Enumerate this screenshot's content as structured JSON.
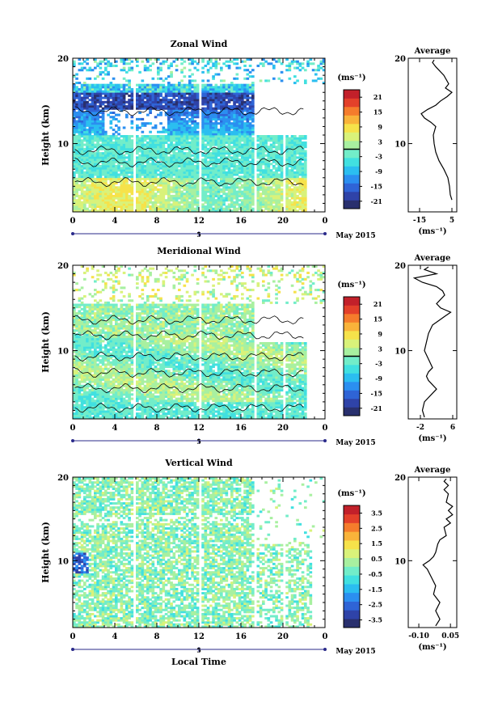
{
  "chart_data": [
    {
      "type": "heatmap",
      "title": "Zonal Wind",
      "ylabel": "Height (km)",
      "yticks": [
        "10",
        "20"
      ],
      "ylim": [
        2,
        20
      ],
      "xticks": [
        "0",
        "4",
        "8",
        "12",
        "16",
        "20",
        "0"
      ],
      "xlim": [
        0,
        24
      ],
      "date_marker": "5",
      "date_label": "May 2015",
      "colorbar": {
        "unit": "(ms⁻¹)",
        "ticks": [
          "21",
          "15",
          "9",
          "3",
          "-3",
          "-9",
          "-15",
          "-21"
        ],
        "range": [
          -24,
          24
        ],
        "zero_line": true
      },
      "average": {
        "title": "Average",
        "yticks": [
          "10",
          "20"
        ],
        "xticks": [
          "-15",
          "5"
        ],
        "xlim": [
          -22,
          8
        ],
        "xlabel": "(ms⁻¹)",
        "profile": [
          [
            3.4,
            5
          ],
          [
            4,
            4
          ],
          [
            5,
            3.5
          ],
          [
            6,
            2.5
          ],
          [
            7,
            0
          ],
          [
            8,
            -3
          ],
          [
            9,
            -5
          ],
          [
            10,
            -6
          ],
          [
            11,
            -6.5
          ],
          [
            12,
            -5
          ],
          [
            12.5,
            -8
          ],
          [
            13,
            -12
          ],
          [
            13.5,
            -14
          ],
          [
            14,
            -10
          ],
          [
            14.5,
            -5
          ],
          [
            15,
            -2
          ],
          [
            15.5,
            2
          ],
          [
            16,
            5
          ],
          [
            16.5,
            1
          ],
          [
            17,
            3
          ],
          [
            18,
            0
          ],
          [
            19,
            -5
          ],
          [
            19.5,
            -7
          ],
          [
            19.8,
            -6
          ]
        ]
      }
    },
    {
      "type": "heatmap",
      "title": "Meridional Wind",
      "ylabel": "Height (km)",
      "yticks": [
        "10",
        "20"
      ],
      "ylim": [
        2,
        20
      ],
      "xticks": [
        "0",
        "4",
        "8",
        "12",
        "16",
        "20",
        "0"
      ],
      "xlim": [
        0,
        24
      ],
      "date_marker": "5",
      "date_label": "May 2015",
      "colorbar": {
        "unit": "(ms⁻¹)",
        "ticks": [
          "21",
          "15",
          "9",
          "3",
          "-3",
          "-9",
          "-15",
          "-21"
        ],
        "range": [
          -24,
          24
        ],
        "zero_line": true
      },
      "average": {
        "title": "Average",
        "yticks": [
          "10",
          "20"
        ],
        "xticks": [
          "-2",
          "6"
        ],
        "xlim": [
          -5,
          7
        ],
        "xlabel": "(ms⁻¹)",
        "profile": [
          [
            2.2,
            -1
          ],
          [
            3,
            -1.5
          ],
          [
            4,
            -1
          ],
          [
            5,
            1
          ],
          [
            5.5,
            2
          ],
          [
            6,
            1
          ],
          [
            6.5,
            0
          ],
          [
            7,
            -0.5
          ],
          [
            7.5,
            0
          ],
          [
            8,
            1
          ],
          [
            9,
            0
          ],
          [
            10,
            -1
          ],
          [
            11,
            -0.5
          ],
          [
            12,
            0
          ],
          [
            13,
            1
          ],
          [
            13.5,
            2.5
          ],
          [
            14,
            4
          ],
          [
            14.5,
            5.5
          ],
          [
            15,
            3
          ],
          [
            15.5,
            2
          ],
          [
            16,
            3
          ],
          [
            16.5,
            4
          ],
          [
            17,
            3.5
          ],
          [
            17.5,
            2
          ],
          [
            18,
            -1.5
          ],
          [
            18.5,
            -3.5
          ],
          [
            19,
            2
          ],
          [
            19.5,
            -1
          ],
          [
            19.8,
            0
          ]
        ]
      }
    },
    {
      "type": "heatmap",
      "title": "Vertical Wind",
      "ylabel": "Height (km)",
      "xlabel": "Local Time",
      "yticks": [
        "10",
        "20"
      ],
      "ylim": [
        2,
        20
      ],
      "xticks": [
        "0",
        "4",
        "8",
        "12",
        "16",
        "20",
        "0"
      ],
      "xlim": [
        0,
        24
      ],
      "date_marker": "5",
      "date_label": "May 2015",
      "colorbar": {
        "unit": "(ms⁻¹)",
        "ticks": [
          "3.5",
          "2.5",
          "1.5",
          "0.5",
          "-0.5",
          "-1.5",
          "-2.5",
          "-3.5"
        ],
        "range": [
          -4,
          4
        ],
        "zero_line": false
      },
      "average": {
        "title": "Average",
        "yticks": [
          "10",
          "20"
        ],
        "xticks": [
          "-0.10",
          "0.05"
        ],
        "xlim": [
          -0.15,
          0.08
        ],
        "xlabel": "(ms⁻¹)",
        "profile": [
          [
            2.2,
            -0.02
          ],
          [
            3,
            0.0
          ],
          [
            4,
            -0.02
          ],
          [
            5,
            0.0
          ],
          [
            6,
            -0.03
          ],
          [
            7,
            -0.02
          ],
          [
            8,
            -0.04
          ],
          [
            9,
            -0.06
          ],
          [
            9.5,
            -0.08
          ],
          [
            10,
            -0.05
          ],
          [
            10.5,
            -0.03
          ],
          [
            11,
            -0.02
          ],
          [
            12,
            -0.01
          ],
          [
            12.5,
            0.0
          ],
          [
            13,
            0.03
          ],
          [
            14,
            0.02
          ],
          [
            14.5,
            0.05
          ],
          [
            15,
            0.03
          ],
          [
            15.5,
            0.06
          ],
          [
            16,
            0.04
          ],
          [
            16.5,
            0.06
          ],
          [
            17,
            0.03
          ],
          [
            18,
            0.04
          ],
          [
            18.5,
            0.02
          ],
          [
            19,
            0.04
          ],
          [
            19.5,
            0.02
          ],
          [
            19.8,
            0.03
          ]
        ]
      }
    }
  ]
}
